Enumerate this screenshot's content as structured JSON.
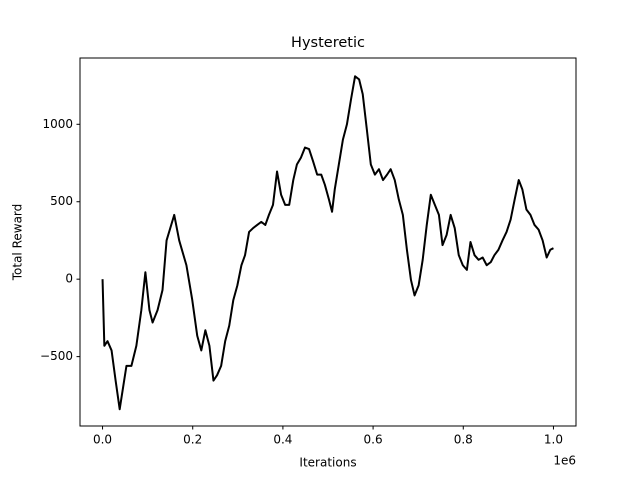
{
  "chart_data": {
    "type": "line",
    "title": "Hysteretic",
    "x_label": "Iterations",
    "y_label": "Total Reward",
    "x_offset_label": "1e6",
    "xlim": [
      -50000,
      1050000
    ],
    "ylim": [
      -948,
      1428
    ],
    "xticks": [
      {
        "value": 0,
        "label": "0.0"
      },
      {
        "value": 200000,
        "label": "0.2"
      },
      {
        "value": 400000,
        "label": "0.4"
      },
      {
        "value": 600000,
        "label": "0.6"
      },
      {
        "value": 800000,
        "label": "0.8"
      },
      {
        "value": 1000000,
        "label": "1.0"
      }
    ],
    "yticks": [
      {
        "value": -500,
        "label": "−500"
      },
      0,
      500,
      1000
    ],
    "grid": false,
    "color": "#000000",
    "x": [
      0,
      4000,
      11000,
      20000,
      29000,
      38000,
      46000,
      53000,
      64000,
      75000,
      86000,
      95000,
      104000,
      111000,
      122000,
      133000,
      142000,
      159000,
      170000,
      186000,
      199000,
      210000,
      219000,
      228000,
      237000,
      246000,
      254000,
      263000,
      272000,
      281000,
      290000,
      299000,
      308000,
      316000,
      325000,
      334000,
      343000,
      352000,
      361000,
      369000,
      378000,
      387000,
      396000,
      405000,
      414000,
      423000,
      431000,
      440000,
      449000,
      458000,
      467000,
      476000,
      485000,
      493000,
      502000,
      509000,
      515000,
      524000,
      533000,
      542000,
      551000,
      560000,
      569000,
      577000,
      586000,
      595000,
      604000,
      613000,
      622000,
      631000,
      639000,
      648000,
      657000,
      666000,
      675000,
      684000,
      692000,
      701000,
      710000,
      719000,
      728000,
      737000,
      746000,
      754000,
      763000,
      772000,
      781000,
      790000,
      799000,
      808000,
      816000,
      825000,
      834000,
      843000,
      852000,
      861000,
      869000,
      878000,
      887000,
      896000,
      905000,
      914000,
      923000,
      931000,
      940000,
      949000,
      958000,
      967000,
      976000,
      985000,
      993000,
      1000000
    ],
    "values": [
      0,
      -430,
      -400,
      -460,
      -655,
      -840,
      -690,
      -560,
      -560,
      -430,
      -200,
      45,
      -200,
      -280,
      -200,
      -70,
      250,
      415,
      250,
      90,
      -135,
      -365,
      -460,
      -330,
      -430,
      -655,
      -620,
      -560,
      -400,
      -300,
      -135,
      -40,
      90,
      155,
      305,
      330,
      350,
      370,
      350,
      415,
      480,
      695,
      545,
      480,
      480,
      640,
      740,
      785,
      850,
      840,
      760,
      675,
      675,
      610,
      515,
      435,
      580,
      740,
      900,
      1000,
      1160,
      1310,
      1290,
      1195,
      970,
      740,
      675,
      710,
      640,
      675,
      710,
      640,
      515,
      415,
      190,
      -5,
      -105,
      -40,
      125,
      350,
      545,
      480,
      415,
      220,
      285,
      415,
      330,
      155,
      90,
      60,
      240,
      155,
      125,
      140,
      90,
      110,
      155,
      190,
      250,
      305,
      385,
      515,
      640,
      580,
      450,
      415,
      350,
      320,
      250,
      140,
      190,
      200
    ]
  }
}
